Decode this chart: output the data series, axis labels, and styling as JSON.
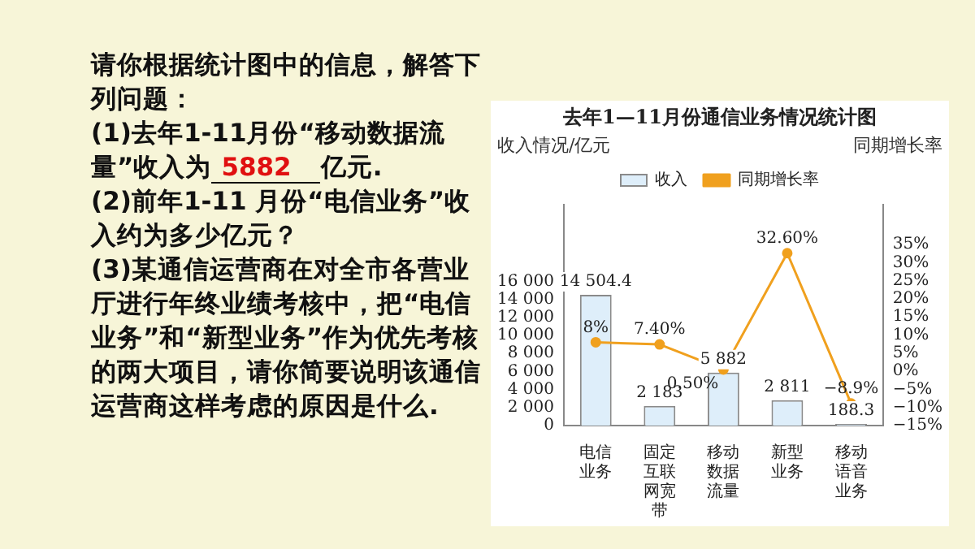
{
  "chart_data": {
    "type": "bar",
    "title": "去年1—11月份通信业务情况统计图",
    "ylabel": "收入情况/亿元",
    "y2label": "同期增长率",
    "categories": [
      "电信业务",
      "固定互联网宽带",
      "移动数据流量",
      "新型业务",
      "移动语音业务"
    ],
    "series": [
      {
        "name": "收入",
        "color": "#deeefa",
        "values": [
          14504.4,
          2183,
          5882,
          2811,
          188.3
        ],
        "value_labels": [
          "14 504.4",
          "2 183",
          "5 882",
          "2 811",
          "188.3"
        ]
      },
      {
        "name": "同期增长率",
        "type": "line",
        "axis": "y2",
        "color": "#f0a01e",
        "values": [
          8,
          7.4,
          0.5,
          32.6,
          -8.9
        ],
        "value_labels": [
          "8%",
          "7.40%",
          "0.50%",
          "32.60%",
          "−8.9%"
        ]
      }
    ],
    "ylim": [
      0,
      24500
    ],
    "yticks": [
      0,
      {
        "value": 2000,
        "label": "2 000"
      },
      {
        "value": 4000,
        "label": "4 000"
      },
      {
        "value": 6000,
        "label": "6 000"
      },
      {
        "value": 8000,
        "label": "8 000"
      },
      {
        "value": 10000,
        "label": "10 000"
      },
      {
        "value": 12000,
        "label": "12 000"
      },
      {
        "value": 14000,
        "label": "14 000"
      },
      {
        "value": 16000,
        "label": "16 000"
      }
    ],
    "y2lim": [
      -15,
      46
    ],
    "y2ticks": [
      {
        "value": -15,
        "label": "−15%"
      },
      {
        "value": -10,
        "label": "−10%"
      },
      {
        "value": -5,
        "label": "−5%"
      },
      {
        "value": 0,
        "label": "0%"
      },
      {
        "value": 5,
        "label": "5%"
      },
      {
        "value": 10,
        "label": "10%"
      },
      {
        "value": 15,
        "label": "15%"
      },
      {
        "value": 20,
        "label": "20%"
      },
      {
        "value": 25,
        "label": "25%"
      },
      {
        "value": 30,
        "label": "30%"
      },
      {
        "value": 35,
        "label": "35%"
      }
    ],
    "grid": false,
    "legend": "top",
    "marker": "circle",
    "annotations": [
      "请你根据统计图中的信息，解答下列问题：",
      "(1)去年1-11月份“移动数据流量”收入为",
      "5882",
      "亿元.",
      "(2)前年1-11 月份“电信业务”收入约为多少亿元？",
      "(3)某通信运营商在对全市各营业厅进行年终业绩考核中，把“电信业务”和“新型业务”作为优先考核的两大项目，请你简要说明该通信运营商这样考虑的原因是什么."
    ]
  }
}
